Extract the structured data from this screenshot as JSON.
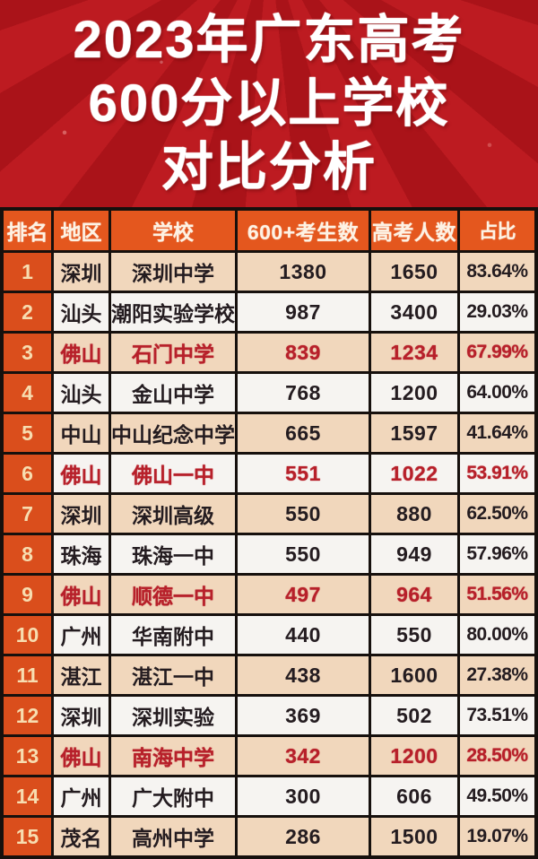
{
  "title": {
    "line1": "2023年广东高考",
    "line2": "600分以上学校",
    "line3": "对比分析"
  },
  "table": {
    "headers": [
      "排名",
      "地区",
      "学校",
      "600+考生数",
      "高考人数",
      "占比"
    ],
    "rows": [
      {
        "rank": "1",
        "region": "深圳",
        "school": "深圳中学",
        "count600": "1380",
        "total": "1650",
        "pct": "83.64%",
        "highlight": false
      },
      {
        "rank": "2",
        "region": "汕头",
        "school": "潮阳实验学校",
        "count600": "987",
        "total": "3400",
        "pct": "29.03%",
        "highlight": false
      },
      {
        "rank": "3",
        "region": "佛山",
        "school": "石门中学",
        "count600": "839",
        "total": "1234",
        "pct": "67.99%",
        "highlight": true
      },
      {
        "rank": "4",
        "region": "汕头",
        "school": "金山中学",
        "count600": "768",
        "total": "1200",
        "pct": "64.00%",
        "highlight": false
      },
      {
        "rank": "5",
        "region": "中山",
        "school": "中山纪念中学",
        "count600": "665",
        "total": "1597",
        "pct": "41.64%",
        "highlight": false
      },
      {
        "rank": "6",
        "region": "佛山",
        "school": "佛山一中",
        "count600": "551",
        "total": "1022",
        "pct": "53.91%",
        "highlight": true
      },
      {
        "rank": "7",
        "region": "深圳",
        "school": "深圳高级",
        "count600": "550",
        "total": "880",
        "pct": "62.50%",
        "highlight": false
      },
      {
        "rank": "8",
        "region": "珠海",
        "school": "珠海一中",
        "count600": "550",
        "total": "949",
        "pct": "57.96%",
        "highlight": false
      },
      {
        "rank": "9",
        "region": "佛山",
        "school": "顺德一中",
        "count600": "497",
        "total": "964",
        "pct": "51.56%",
        "highlight": true
      },
      {
        "rank": "10",
        "region": "广州",
        "school": "华南附中",
        "count600": "440",
        "total": "550",
        "pct": "80.00%",
        "highlight": false
      },
      {
        "rank": "11",
        "region": "湛江",
        "school": "湛江一中",
        "count600": "438",
        "total": "1600",
        "pct": "27.38%",
        "highlight": false
      },
      {
        "rank": "12",
        "region": "深圳",
        "school": "深圳实验",
        "count600": "369",
        "total": "502",
        "pct": "73.51%",
        "highlight": false
      },
      {
        "rank": "13",
        "region": "佛山",
        "school": "南海中学",
        "count600": "342",
        "total": "1200",
        "pct": "28.50%",
        "highlight": true
      },
      {
        "rank": "14",
        "region": "广州",
        "school": "广大附中",
        "count600": "300",
        "total": "606",
        "pct": "49.50%",
        "highlight": false
      },
      {
        "rank": "15",
        "region": "茂名",
        "school": "高州中学",
        "count600": "286",
        "total": "1500",
        "pct": "19.07%",
        "highlight": false
      }
    ]
  },
  "colors": {
    "title_background": "#b6171e",
    "header_background": "#e4571e",
    "rank_background": "#da4e1c",
    "row_beige": "#f1d7bc",
    "row_white": "#f6f4f1",
    "highlight_text": "#b7202a",
    "normal_text": "#241c20",
    "border": "#16100d"
  }
}
